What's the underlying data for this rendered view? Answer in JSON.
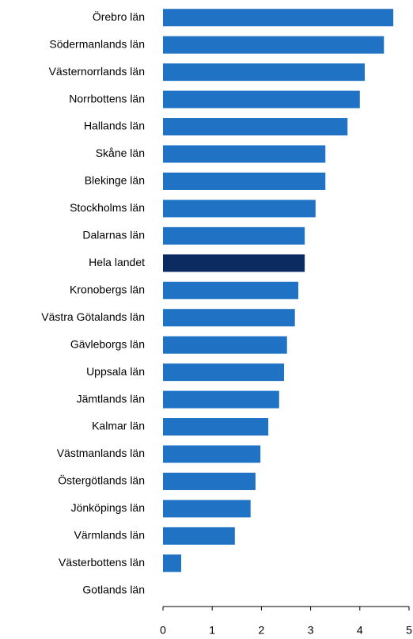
{
  "chart_data": {
    "type": "barh",
    "categories": [
      "Örebro län",
      "Södermanlands län",
      "Västernorrlands län",
      "Norrbottens län",
      "Hallands län",
      "Skåne län",
      "Blekinge län",
      "Stockholms län",
      "Dalarnas län",
      "Hela landet",
      "Kronobergs län",
      "Västra Götalands län",
      "Gävleborgs län",
      "Uppsala län",
      "Jämtlands län",
      "Kalmar län",
      "Västmanlands län",
      "Östergötlands län",
      "Jönköpings län",
      "Värmlands län",
      "Västerbottens län",
      "Gotlands län"
    ],
    "values": [
      4.68,
      4.49,
      4.1,
      4.0,
      3.75,
      3.3,
      3.3,
      3.1,
      2.88,
      2.88,
      2.75,
      2.68,
      2.52,
      2.46,
      2.36,
      2.14,
      1.98,
      1.88,
      1.78,
      1.46,
      0.37,
      0
    ],
    "colors": [
      "#1f72c4",
      "#1f72c4",
      "#1f72c4",
      "#1f72c4",
      "#1f72c4",
      "#1f72c4",
      "#1f72c4",
      "#1f72c4",
      "#1f72c4",
      "#0b2a5f",
      "#1f72c4",
      "#1f72c4",
      "#1f72c4",
      "#1f72c4",
      "#1f72c4",
      "#1f72c4",
      "#1f72c4",
      "#1f72c4",
      "#1f72c4",
      "#1f72c4",
      "#1f72c4",
      "#1f72c4"
    ],
    "xlim": [
      0,
      5
    ],
    "xticks": [
      0,
      1,
      2,
      3,
      4,
      5
    ]
  }
}
